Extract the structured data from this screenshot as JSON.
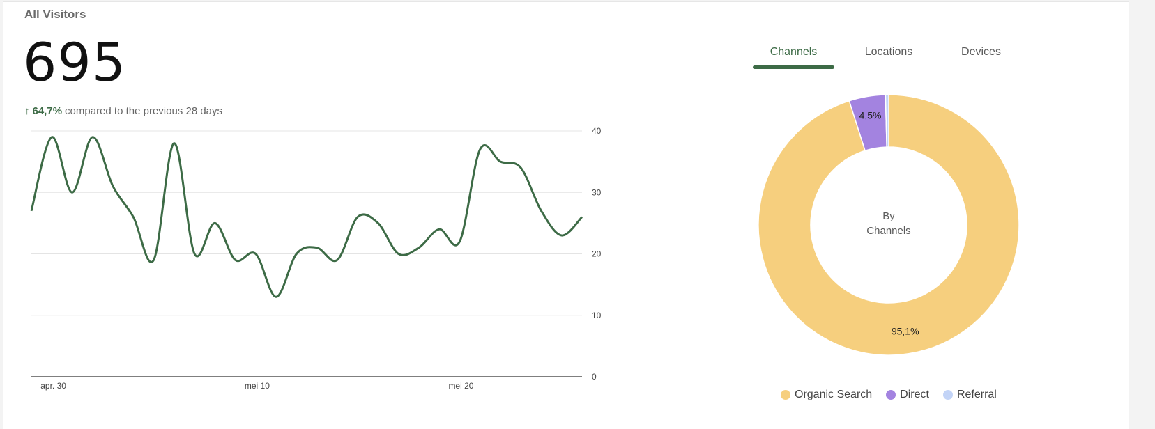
{
  "header": {
    "title": "All Visitors",
    "total": "695",
    "change_pct": "64,7%",
    "compare_text": "compared to the previous 28 days"
  },
  "tabs": [
    {
      "label": "Channels",
      "active": true
    },
    {
      "label": "Locations",
      "active": false
    },
    {
      "label": "Devices",
      "active": false
    }
  ],
  "colors": {
    "accent": "#3d6b46",
    "organic": "#f6cf7e",
    "direct": "#a383e0",
    "referral": "#c3d4f7"
  },
  "chart_data": [
    {
      "type": "line",
      "series": [
        {
          "values": [
            27,
            39,
            30,
            39,
            31,
            26,
            19,
            38,
            20,
            25,
            19,
            20,
            13,
            20,
            21,
            19,
            26,
            25,
            20,
            21,
            24,
            22,
            37,
            35,
            34,
            27,
            23,
            26
          ]
        }
      ],
      "x_tick_labels": [
        "apr. 30",
        "mei 10",
        "mei 20"
      ],
      "x_tick_index": [
        1,
        11,
        21
      ],
      "y_ticks": [
        0,
        10,
        20,
        30,
        40
      ],
      "ylim": [
        0,
        40
      ],
      "y_axis_position": "right",
      "grid": true
    },
    {
      "type": "pie",
      "style": "donut",
      "center_label": [
        "By",
        "Channels"
      ],
      "slices": [
        {
          "label": "Organic Search",
          "value": 95.1,
          "display": "95,1%",
          "color": "#f6cf7e"
        },
        {
          "label": "Direct",
          "value": 4.5,
          "display": "4,5%",
          "color": "#a383e0"
        },
        {
          "label": "Referral",
          "value": 0.4,
          "display": "",
          "color": "#c3d4f7"
        }
      ],
      "legend_position": "bottom"
    }
  ]
}
